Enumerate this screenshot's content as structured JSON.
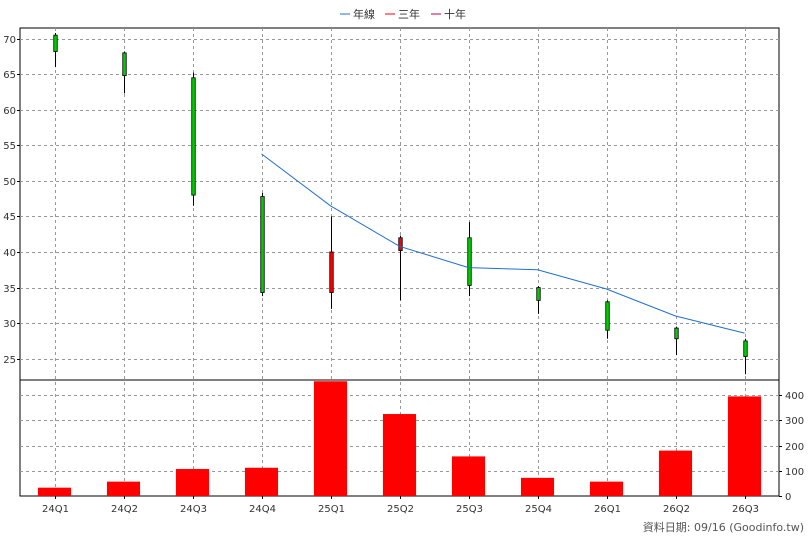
{
  "legend": [
    {
      "label": "年線",
      "color": "#1f6fd1"
    },
    {
      "label": "三年",
      "color": "#ff0000"
    },
    {
      "label": "十年",
      "color": "#cc0044"
    }
  ],
  "footer": "資料日期: 09/16  (Goodinfo.tw)",
  "chart_data": [
    {
      "type": "candlestick",
      "categories": [
        "24Q1",
        "24Q2",
        "24Q3",
        "24Q4",
        "25Q1",
        "25Q2",
        "25Q3",
        "25Q4",
        "26Q1",
        "26Q2",
        "26Q3"
      ],
      "ylim": [
        22,
        71.5
      ],
      "yticks": [
        25,
        30,
        35,
        40,
        45,
        50,
        55,
        60,
        65,
        70
      ],
      "grid": true,
      "up_color": "#ff0000",
      "down_color": "#00cc00",
      "candles": [
        {
          "open": 70.5,
          "close": 68.2,
          "high": 70.8,
          "low": 66.0
        },
        {
          "open": 68.0,
          "close": 64.8,
          "high": 68.2,
          "low": 62.3
        },
        {
          "open": 64.5,
          "close": 48.0,
          "high": 65.2,
          "low": 46.5
        },
        {
          "open": 47.8,
          "close": 34.3,
          "high": 48.3,
          "low": 33.8
        },
        {
          "open": 34.3,
          "close": 40.0,
          "high": 45.0,
          "low": 32.0
        },
        {
          "open": 40.2,
          "close": 42.0,
          "high": 42.3,
          "low": 33.2
        },
        {
          "open": 42.0,
          "close": 35.3,
          "high": 44.2,
          "low": 33.8
        },
        {
          "open": 35.0,
          "close": 33.2,
          "high": 35.2,
          "low": 31.3
        },
        {
          "open": 33.0,
          "close": 29.0,
          "high": 33.2,
          "low": 27.8
        },
        {
          "open": 29.3,
          "close": 27.8,
          "high": 29.5,
          "low": 25.5
        },
        {
          "open": 27.5,
          "close": 25.3,
          "high": 27.8,
          "low": 22.8
        }
      ],
      "series": [
        {
          "name": "年線",
          "color": "#1f6fd1",
          "values": [
            null,
            null,
            null,
            53.8,
            46.5,
            40.8,
            37.8,
            37.5,
            34.8,
            31.0,
            28.6
          ]
        }
      ]
    },
    {
      "type": "bar",
      "categories": [
        "24Q1",
        "24Q2",
        "24Q3",
        "24Q4",
        "25Q1",
        "25Q2",
        "25Q3",
        "25Q4",
        "26Q1",
        "26Q2",
        "26Q3"
      ],
      "values": [
        33,
        57,
        107,
        112,
        455,
        325,
        157,
        72,
        57,
        180,
        395
      ],
      "ylim": [
        0,
        460
      ],
      "yticks": [
        0,
        100,
        200,
        300,
        400
      ],
      "color": "#ff0000",
      "grid": true
    }
  ]
}
